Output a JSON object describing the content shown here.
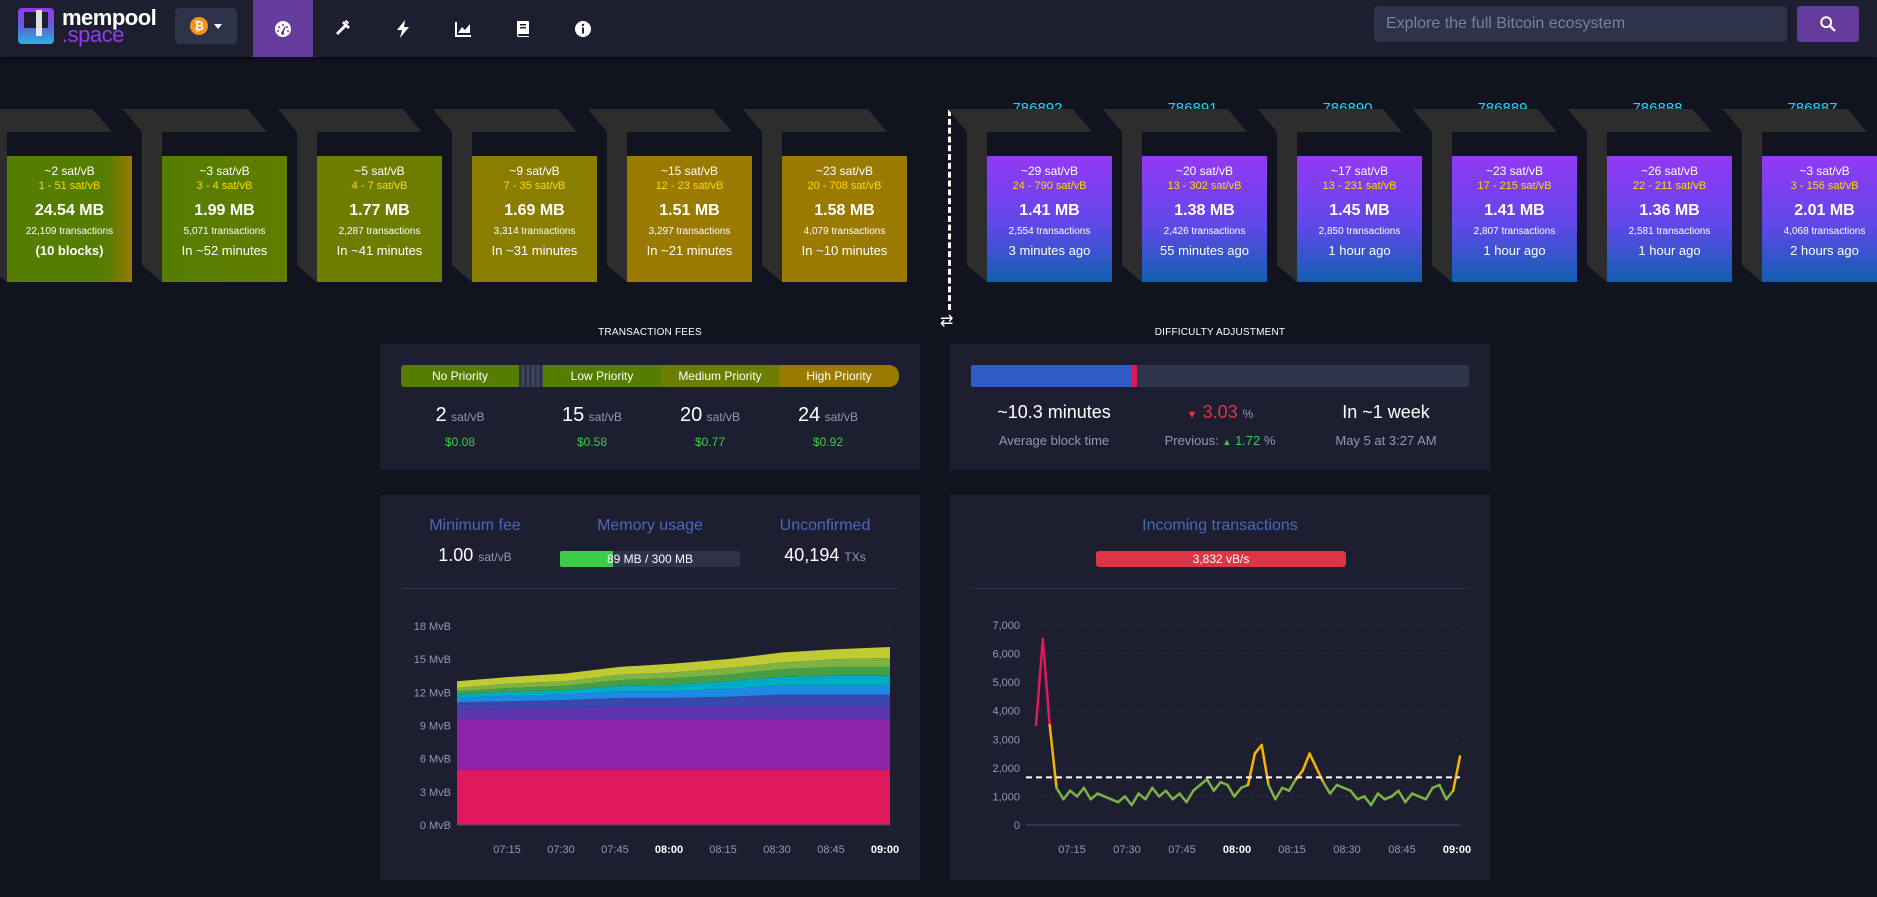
{
  "brand": {
    "line1": "mempool",
    "line2": ".space"
  },
  "network": {
    "icon": "bitcoin-icon",
    "symbol": "₿"
  },
  "nav": [
    {
      "name": "dashboard-icon",
      "active": true
    },
    {
      "name": "mining-hammer-icon",
      "active": false
    },
    {
      "name": "lightning-icon",
      "active": false
    },
    {
      "name": "graphs-icon",
      "active": false
    },
    {
      "name": "docs-book-icon",
      "active": false
    },
    {
      "name": "about-info-icon",
      "active": false
    }
  ],
  "search": {
    "placeholder": "Explore the full Bitcoin ecosystem"
  },
  "mempool_blocks": [
    {
      "fee": "~2 sat/vB",
      "range": "1 - 51 sat/vB",
      "size": "24.54 MB",
      "txs": "22,109 transactions",
      "eta": "(10 blocks)"
    },
    {
      "fee": "~3 sat/vB",
      "range": "3 - 4 sat/vB",
      "size": "1.99 MB",
      "txs": "5,071 transactions",
      "eta": "In ~52 minutes"
    },
    {
      "fee": "~5 sat/vB",
      "range": "4 - 7 sat/vB",
      "size": "1.77 MB",
      "txs": "2,287 transactions",
      "eta": "In ~41 minutes"
    },
    {
      "fee": "~9 sat/vB",
      "range": "7 - 35 sat/vB",
      "size": "1.69 MB",
      "txs": "3,314 transactions",
      "eta": "In ~31 minutes"
    },
    {
      "fee": "~15 sat/vB",
      "range": "12 - 23 sat/vB",
      "size": "1.51 MB",
      "txs": "3,297 transactions",
      "eta": "In ~21 minutes"
    },
    {
      "fee": "~23 sat/vB",
      "range": "20 - 708 sat/vB",
      "size": "1.58 MB",
      "txs": "4,079 transactions",
      "eta": "In ~10 minutes"
    }
  ],
  "mined_blocks": [
    {
      "height": "786892",
      "fee": "~29 sat/vB",
      "range": "24 - 790 sat/vB",
      "size": "1.41 MB",
      "txs": "2,554 transactions",
      "time": "3 minutes ago"
    },
    {
      "height": "786891",
      "fee": "~20 sat/vB",
      "range": "13 - 302 sat/vB",
      "size": "1.38 MB",
      "txs": "2,426 transactions",
      "time": "55 minutes ago"
    },
    {
      "height": "786890",
      "fee": "~17 sat/vB",
      "range": "13 - 231 sat/vB",
      "size": "1.45 MB",
      "txs": "2,850 transactions",
      "time": "1 hour ago"
    },
    {
      "height": "786889",
      "fee": "~23 sat/vB",
      "range": "17 - 215 sat/vB",
      "size": "1.41 MB",
      "txs": "2,807 transactions",
      "time": "1 hour ago"
    },
    {
      "height": "786888",
      "fee": "~26 sat/vB",
      "range": "22 - 211 sat/vB",
      "size": "1.36 MB",
      "txs": "2,581 transactions",
      "time": "1 hour ago"
    },
    {
      "height": "786887",
      "fee": "~3 sat/vB",
      "range": "3 - 156 sat/vB",
      "size": "2.01 MB",
      "txs": "4,068 transactions",
      "time": "2 hours ago"
    }
  ],
  "fees": {
    "title": "TRANSACTION FEES",
    "unit": "sat/vB",
    "priorities": [
      {
        "label": "No Priority",
        "value": "2",
        "usd": "$0.08"
      },
      {
        "label": "Low Priority",
        "value": "15",
        "usd": "$0.58"
      },
      {
        "label": "Medium Priority",
        "value": "20",
        "usd": "$0.77"
      },
      {
        "label": "High Priority",
        "value": "24",
        "usd": "$0.92"
      }
    ]
  },
  "difficulty": {
    "title": "DIFFICULTY ADJUSTMENT",
    "progress_fraction": 0.33,
    "avg_time": "~10.3 minutes",
    "avg_time_label": "Average block time",
    "change": "3.03",
    "change_unit": "%",
    "previous_label": "Previous:",
    "previous_value": "1.72",
    "previous_unit": "%",
    "eta": "In ~1 week",
    "eta_date": "May 5 at 3:27 AM"
  },
  "mempool_stats": {
    "min_fee_label": "Minimum fee",
    "min_fee": "1.00",
    "min_fee_unit": "sat/vB",
    "memory_label": "Memory usage",
    "memory": "89 MB / 300 MB",
    "memory_fraction": 0.297,
    "unconfirmed_label": "Unconfirmed",
    "unconfirmed": "40,194",
    "unconfirmed_unit": "TXs"
  },
  "incoming": {
    "label": "Incoming transactions",
    "rate": "3,832 vB/s"
  },
  "colors": {
    "accent": "#653b9c",
    "height": "#1bd8f4",
    "positive": "#3bcc49",
    "negative": "#dc3545"
  },
  "chart_data": [
    {
      "type": "area",
      "title": "",
      "y_ticks": [
        "0 MvB",
        "3 MvB",
        "6 MvB",
        "9 MvB",
        "12 MvB",
        "15 MvB",
        "18 MvB"
      ],
      "ylim": [
        0,
        18
      ],
      "x_ticks": [
        "07:15",
        "07:30",
        "07:45",
        "08:00",
        "08:15",
        "08:30",
        "08:45",
        "09:00"
      ],
      "series": [
        {
          "color": "#e0185c",
          "values": [
            5,
            5,
            5,
            5,
            5,
            5,
            5,
            5,
            5
          ]
        },
        {
          "color": "#8e24aa",
          "values": [
            4.5,
            4.5,
            4.5,
            4.5,
            4.5,
            4.5,
            4.5,
            4.5,
            4.5
          ]
        },
        {
          "color": "#5e35b1",
          "values": [
            1.0,
            1.1,
            1.1,
            1.2,
            1.2,
            1.2,
            1.3,
            1.3,
            1.3
          ]
        },
        {
          "color": "#3949ab",
          "values": [
            0.6,
            0.6,
            0.7,
            0.8,
            0.8,
            0.9,
            1.0,
            1.0,
            1.0
          ]
        },
        {
          "color": "#1e88e5",
          "values": [
            0.4,
            0.5,
            0.5,
            0.6,
            0.6,
            0.7,
            0.8,
            0.8,
            0.8
          ]
        },
        {
          "color": "#00acc1",
          "values": [
            0.3,
            0.4,
            0.4,
            0.5,
            0.6,
            0.7,
            0.8,
            0.9,
            0.9
          ]
        },
        {
          "color": "#43a047",
          "values": [
            0.3,
            0.3,
            0.4,
            0.5,
            0.6,
            0.6,
            0.7,
            0.8,
            0.8
          ]
        },
        {
          "color": "#7cb342",
          "values": [
            0.3,
            0.4,
            0.4,
            0.5,
            0.5,
            0.6,
            0.6,
            0.7,
            0.8
          ]
        },
        {
          "color": "#c0ca33",
          "values": [
            0.6,
            0.6,
            0.7,
            0.7,
            0.8,
            0.8,
            0.9,
            0.9,
            1.0
          ]
        }
      ]
    },
    {
      "type": "line",
      "title": "",
      "y_ticks": [
        "0",
        "1,000",
        "2,000",
        "3,000",
        "4,000",
        "5,000",
        "6,000",
        "7,000"
      ],
      "ylim": [
        0,
        7000
      ],
      "x_ticks": [
        "07:15",
        "07:30",
        "07:45",
        "08:00",
        "08:15",
        "08:30",
        "08:45",
        "09:00"
      ],
      "reference_line": 1667,
      "values": [
        3500,
        6500,
        3500,
        1300,
        900,
        1200,
        1000,
        1300,
        900,
        1100,
        1000,
        900,
        800,
        1000,
        700,
        1100,
        900,
        1300,
        1000,
        1200,
        900,
        1100,
        800,
        1200,
        1400,
        1600,
        1200,
        1500,
        1400,
        1000,
        1300,
        1400,
        2500,
        2800,
        1400,
        900,
        1300,
        1200,
        1600,
        1900,
        2500,
        2000,
        1500,
        1100,
        1400,
        1300,
        1200,
        900,
        1000,
        700,
        1100,
        900,
        1000,
        1200,
        800,
        1100,
        1000,
        900,
        1300,
        1400,
        900,
        1200,
        2400
      ]
    }
  ]
}
